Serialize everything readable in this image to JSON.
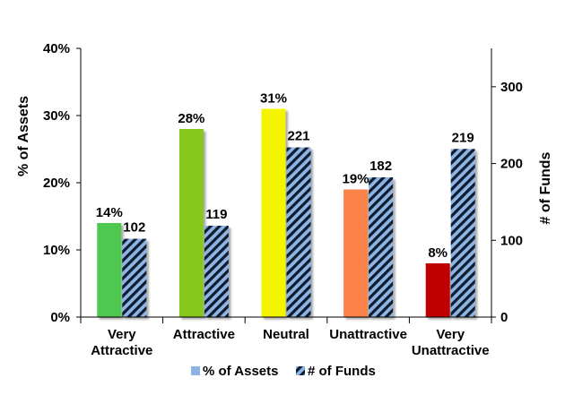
{
  "chart_data": {
    "type": "bar",
    "categories": [
      [
        "Very",
        "Attractive"
      ],
      [
        "Attractive"
      ],
      [
        "Neutral"
      ],
      [
        "Unattractive"
      ],
      [
        "Very",
        "Unattractive"
      ]
    ],
    "category_colors": [
      "#50c850",
      "#88c81a",
      "#f4f400",
      "#fb8249",
      "#c00000"
    ],
    "series": [
      {
        "name": "% of Assets",
        "axis": "left",
        "values": [
          14,
          28,
          31,
          19,
          8
        ],
        "labels": [
          "14%",
          "28%",
          "31%",
          "19%",
          "8%"
        ],
        "legend_color": "#8eb4e3"
      },
      {
        "name": "# of Funds",
        "axis": "right",
        "values": [
          102,
          119,
          221,
          182,
          219
        ],
        "labels": [
          "102",
          "119",
          "221",
          "182",
          "219"
        ],
        "pattern": "diagonal-stripes",
        "pattern_colors": [
          "#0d1a2e",
          "#8eb4e3"
        ]
      }
    ],
    "y_left": {
      "label": "% of Assets",
      "min": 0,
      "max": 40,
      "ticks": [
        0,
        10,
        20,
        30,
        40
      ],
      "tick_labels": [
        "0%",
        "10%",
        "20%",
        "30%",
        "40%"
      ]
    },
    "y_right": {
      "label": "# of Funds",
      "min": 0,
      "max": 350,
      "ticks": [
        0,
        100,
        200,
        300
      ],
      "tick_labels": [
        "0",
        "100",
        "200",
        "300"
      ]
    },
    "grid": false,
    "legend": "bottom"
  }
}
